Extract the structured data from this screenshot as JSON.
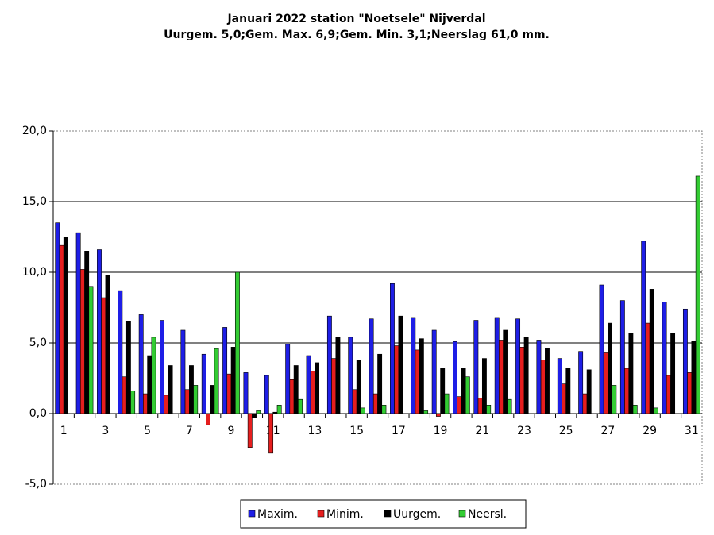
{
  "chart_data": {
    "type": "bar",
    "title": "Januari 2022 station \"Noetsele\" Nijverdal",
    "subtitle": "Uurgem. 5,0;Gem. Max. 6,9;Gem. Min. 3,1;Neerslag 61,0 mm.",
    "categories": [
      "1",
      null,
      "3",
      null,
      "5",
      null,
      "7",
      null,
      "9",
      null,
      "11",
      null,
      "13",
      null,
      "15",
      null,
      "17",
      null,
      "19",
      null,
      "21",
      null,
      "23",
      null,
      "25",
      null,
      "27",
      null,
      "29",
      null,
      "31"
    ],
    "series": [
      {
        "name": "Maxim.",
        "color": "#1e1ee6",
        "values": [
          13.5,
          12.8,
          11.6,
          8.7,
          7.0,
          6.6,
          5.9,
          4.2,
          6.1,
          2.9,
          2.7,
          4.9,
          4.1,
          6.9,
          5.4,
          6.7,
          9.2,
          6.8,
          5.9,
          5.1,
          6.6,
          6.8,
          6.7,
          5.2,
          3.9,
          4.4,
          9.1,
          8.0,
          12.2,
          7.9,
          7.4
        ]
      },
      {
        "name": "Minim.",
        "color": "#e61e1e",
        "values": [
          11.9,
          10.2,
          8.2,
          2.6,
          1.4,
          1.3,
          1.7,
          -0.8,
          2.8,
          -2.4,
          -2.8,
          2.4,
          3.0,
          3.9,
          1.7,
          1.4,
          4.8,
          4.5,
          -0.2,
          1.2,
          1.1,
          5.2,
          4.7,
          3.8,
          2.1,
          1.4,
          4.3,
          3.2,
          6.4,
          2.7,
          2.9
        ]
      },
      {
        "name": "Uurgem.",
        "color": "#000000",
        "values": [
          12.5,
          11.5,
          9.8,
          6.5,
          4.1,
          3.4,
          3.4,
          2.0,
          4.7,
          -0.3,
          0.1,
          3.4,
          3.6,
          5.4,
          3.8,
          4.2,
          6.9,
          5.3,
          3.2,
          3.2,
          3.9,
          5.9,
          5.4,
          4.6,
          3.2,
          3.1,
          6.4,
          5.7,
          8.8,
          5.7,
          5.1
        ]
      },
      {
        "name": "Neersl.",
        "color": "#33cc33",
        "values": [
          0,
          9.0,
          0,
          1.6,
          5.4,
          0,
          2.0,
          4.6,
          10.0,
          0.2,
          0.6,
          1.0,
          0,
          0,
          0.4,
          0.6,
          0,
          0.2,
          1.4,
          2.6,
          0.6,
          1.0,
          0,
          0,
          0,
          0,
          2.0,
          0.6,
          0.4,
          0,
          16.8
        ]
      }
    ],
    "ylim": [
      -5,
      20
    ],
    "yticks": [
      {
        "value": -5,
        "label": "-5,0"
      },
      {
        "value": 0,
        "label": "0,0"
      },
      {
        "value": 5,
        "label": "5,0"
      },
      {
        "value": 10,
        "label": "10,0"
      },
      {
        "value": 15,
        "label": "15,0"
      },
      {
        "value": 20,
        "label": "20,0"
      }
    ],
    "grid": true
  }
}
